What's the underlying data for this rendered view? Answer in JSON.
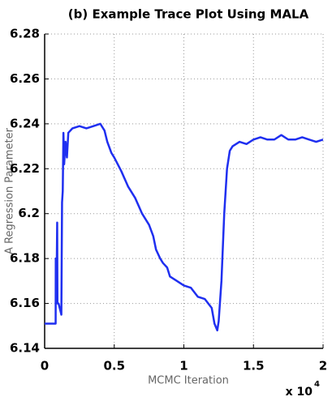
{
  "chart_data": {
    "type": "line",
    "title": "(b) Example Trace Plot Using MALA",
    "xlabel": "MCMC Iteration",
    "ylabel": "A Regression Parameter",
    "x_multiplier": "x 10",
    "x_exponent": "4",
    "color": "#1f2ff0",
    "grid": true,
    "xlim": [
      0,
      2
    ],
    "xticks": [
      0,
      0.5,
      1,
      1.5,
      2
    ],
    "ylim": [
      6.14,
      6.28
    ],
    "yticks": [
      6.14,
      6.16,
      6.18,
      6.2,
      6.22,
      6.24,
      6.26,
      6.28
    ],
    "x": [
      0,
      0.079,
      0.08,
      0.085,
      0.09,
      0.092,
      0.1,
      0.12,
      0.125,
      0.13,
      0.135,
      0.14,
      0.15,
      0.16,
      0.17,
      0.2,
      0.25,
      0.3,
      0.35,
      0.4,
      0.43,
      0.45,
      0.48,
      0.5,
      0.55,
      0.6,
      0.65,
      0.7,
      0.75,
      0.78,
      0.8,
      0.83,
      0.85,
      0.88,
      0.9,
      0.95,
      1.0,
      1.05,
      1.1,
      1.15,
      1.2,
      1.22,
      1.24,
      1.25,
      1.27,
      1.29,
      1.31,
      1.33,
      1.35,
      1.4,
      1.45,
      1.5,
      1.55,
      1.6,
      1.65,
      1.7,
      1.75,
      1.8,
      1.85,
      1.9,
      1.95,
      2.0
    ],
    "values": [
      6.151,
      6.151,
      6.18,
      6.165,
      6.196,
      6.16,
      6.16,
      6.155,
      6.205,
      6.21,
      6.236,
      6.222,
      6.232,
      6.225,
      6.236,
      6.238,
      6.239,
      6.238,
      6.239,
      6.24,
      6.237,
      6.232,
      6.227,
      6.225,
      6.219,
      6.212,
      6.207,
      6.2,
      6.195,
      6.19,
      6.184,
      6.18,
      6.178,
      6.176,
      6.172,
      6.17,
      6.168,
      6.167,
      6.163,
      6.162,
      6.158,
      6.151,
      6.148,
      6.152,
      6.17,
      6.2,
      6.22,
      6.228,
      6.23,
      6.232,
      6.231,
      6.233,
      6.234,
      6.233,
      6.233,
      6.235,
      6.233,
      6.233,
      6.234,
      6.233,
      6.232,
      6.233
    ]
  }
}
